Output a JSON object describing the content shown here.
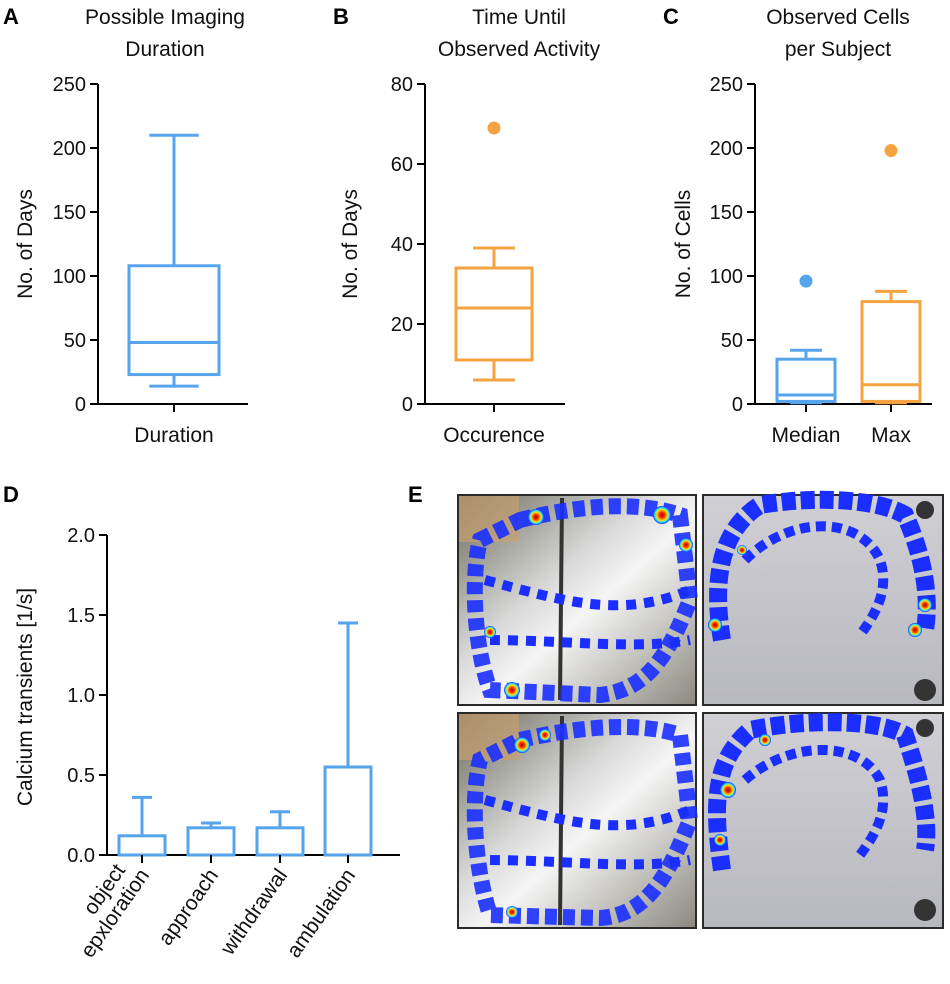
{
  "colors": {
    "blue": "#56A5EC",
    "orange": "#F4A340",
    "axis": "#000000"
  },
  "chart_data": [
    {
      "panel": "A",
      "type": "box",
      "title": [
        "Possible Imaging",
        "Duration"
      ],
      "ylabel": "No. of Days",
      "xlabel": "",
      "ylim": [
        0,
        250
      ],
      "yticks": [
        0,
        50,
        100,
        150,
        200,
        250
      ],
      "categories": [
        "Duration"
      ],
      "boxes": [
        {
          "name": "Duration",
          "color": "blue",
          "whisker_low": 14,
          "q1": 23,
          "median": 48,
          "q3": 108,
          "whisker_high": 210,
          "outliers": []
        }
      ]
    },
    {
      "panel": "B",
      "type": "box",
      "title": [
        "Time Until",
        "Observed Activity"
      ],
      "ylabel": "No. of Days",
      "xlabel": "",
      "ylim": [
        0,
        80
      ],
      "yticks": [
        0,
        20,
        40,
        60,
        80
      ],
      "categories": [
        "Occurence"
      ],
      "boxes": [
        {
          "name": "Occurence",
          "color": "orange",
          "whisker_low": 6,
          "q1": 11,
          "median": 24,
          "q3": 34,
          "whisker_high": 39,
          "outliers": [
            69
          ]
        }
      ]
    },
    {
      "panel": "C",
      "type": "box",
      "title": [
        "Observed Cells",
        "per Subject"
      ],
      "ylabel": "No. of Cells",
      "xlabel": "",
      "ylim": [
        0,
        250
      ],
      "yticks": [
        0,
        50,
        100,
        150,
        200,
        250
      ],
      "categories": [
        "Median",
        "Max"
      ],
      "boxes": [
        {
          "name": "Median",
          "color": "blue",
          "whisker_low": 1,
          "q1": 2,
          "median": 7,
          "q3": 35,
          "whisker_high": 42,
          "outliers": [
            96
          ]
        },
        {
          "name": "Max",
          "color": "orange",
          "whisker_low": 1,
          "q1": 2,
          "median": 15,
          "q3": 80,
          "whisker_high": 88,
          "outliers": [
            198
          ]
        }
      ]
    },
    {
      "panel": "D",
      "type": "bar",
      "title": [],
      "ylabel": "Calcium transients [1/s]",
      "xlabel": "",
      "ylim": [
        0,
        2.0
      ],
      "yticks": [
        "0.0",
        "0.5",
        "1.0",
        "1.5",
        "2.0"
      ],
      "categories": [
        "object epxloration",
        "approach",
        "withdrawal",
        "ambulation"
      ],
      "category_lines": [
        [
          "object",
          "epxloration"
        ],
        [
          "approach"
        ],
        [
          "withdrawal"
        ],
        [
          "ambulation"
        ]
      ],
      "values": [
        0.12,
        0.17,
        0.17,
        0.55
      ],
      "error_upper": [
        0.36,
        0.2,
        0.27,
        1.45
      ],
      "color": "blue"
    }
  ],
  "panel_e": {
    "label": "E",
    "description_images": 4,
    "layout": "2x2 heatmap trajectory images"
  },
  "panel_labels": [
    "A",
    "B",
    "C",
    "D",
    "E"
  ]
}
